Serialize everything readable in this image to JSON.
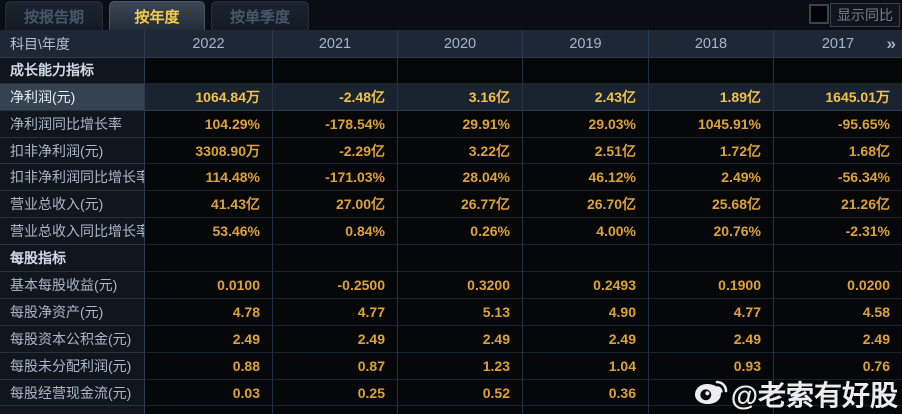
{
  "tabs": [
    {
      "name": "tab-report-period",
      "label": "按报告期",
      "active": false
    },
    {
      "name": "tab-annual",
      "label": "按年度",
      "active": true
    },
    {
      "name": "tab-quarterly",
      "label": "按单季度",
      "active": false
    }
  ],
  "controls": {
    "show_yoy_label": "显示同比",
    "checkbox_checked": false
  },
  "table": {
    "corner_header": "科目\\年度",
    "year_columns": [
      "2022",
      "2021",
      "2020",
      "2019",
      "2018",
      "2017"
    ],
    "more_icon": "»",
    "rows": [
      {
        "type": "section",
        "label": "成长能力指标",
        "values": [
          "",
          "",
          "",
          "",
          "",
          ""
        ]
      },
      {
        "type": "data",
        "highlight": true,
        "label": "净利润(元)",
        "values": [
          "1064.84万",
          "-2.48亿",
          "3.16亿",
          "2.43亿",
          "1.89亿",
          "1645.01万"
        ]
      },
      {
        "type": "data",
        "label": "净利润同比增长率",
        "values": [
          "104.29%",
          "-178.54%",
          "29.91%",
          "29.03%",
          "1045.91%",
          "-95.65%"
        ]
      },
      {
        "type": "data",
        "label": "扣非净利润(元)",
        "values": [
          "3308.90万",
          "-2.29亿",
          "3.22亿",
          "2.51亿",
          "1.72亿",
          "1.68亿"
        ]
      },
      {
        "type": "data",
        "label": "扣非净利润同比增长率",
        "values": [
          "114.48%",
          "-171.03%",
          "28.04%",
          "46.12%",
          "2.49%",
          "-56.34%"
        ]
      },
      {
        "type": "data",
        "label": "营业总收入(元)",
        "values": [
          "41.43亿",
          "27.00亿",
          "26.77亿",
          "26.70亿",
          "25.68亿",
          "21.26亿"
        ]
      },
      {
        "type": "data",
        "label": "营业总收入同比增长率",
        "values": [
          "53.46%",
          "0.84%",
          "0.26%",
          "4.00%",
          "20.76%",
          "-2.31%"
        ]
      },
      {
        "type": "section",
        "label": "每股指标",
        "values": [
          "",
          "",
          "",
          "",
          "",
          ""
        ]
      },
      {
        "type": "data",
        "label": "基本每股收益(元)",
        "values": [
          "0.0100",
          "-0.2500",
          "0.3200",
          "0.2493",
          "0.1900",
          "0.0200"
        ]
      },
      {
        "type": "data",
        "label": "每股净资产(元)",
        "values": [
          "4.78",
          "4.77",
          "5.13",
          "4.90",
          "4.77",
          "4.58"
        ]
      },
      {
        "type": "data",
        "label": "每股资本公积金(元)",
        "values": [
          "2.49",
          "2.49",
          "2.49",
          "2.49",
          "2.49",
          "2.49"
        ]
      },
      {
        "type": "data",
        "label": "每股未分配利润(元)",
        "values": [
          "0.88",
          "0.87",
          "1.23",
          "1.04",
          "0.93",
          "0.76"
        ]
      },
      {
        "type": "data",
        "label": "每股经营现金流(元)",
        "values": [
          "0.03",
          "0.25",
          "0.52",
          "0.36",
          "",
          ""
        ]
      }
    ]
  },
  "watermark": {
    "icon": "weibo-logo",
    "text": "@老索有好股"
  },
  "colors": {
    "accent_gold": "#f2c24a",
    "value_gold": "#dda23a",
    "highlight_row_bg": "#1a2330",
    "highlight_label_bg": "#35424f",
    "header_bg": "#1d2735",
    "page_bg": "#080b10",
    "column_indicator_red": "#3a1410"
  }
}
